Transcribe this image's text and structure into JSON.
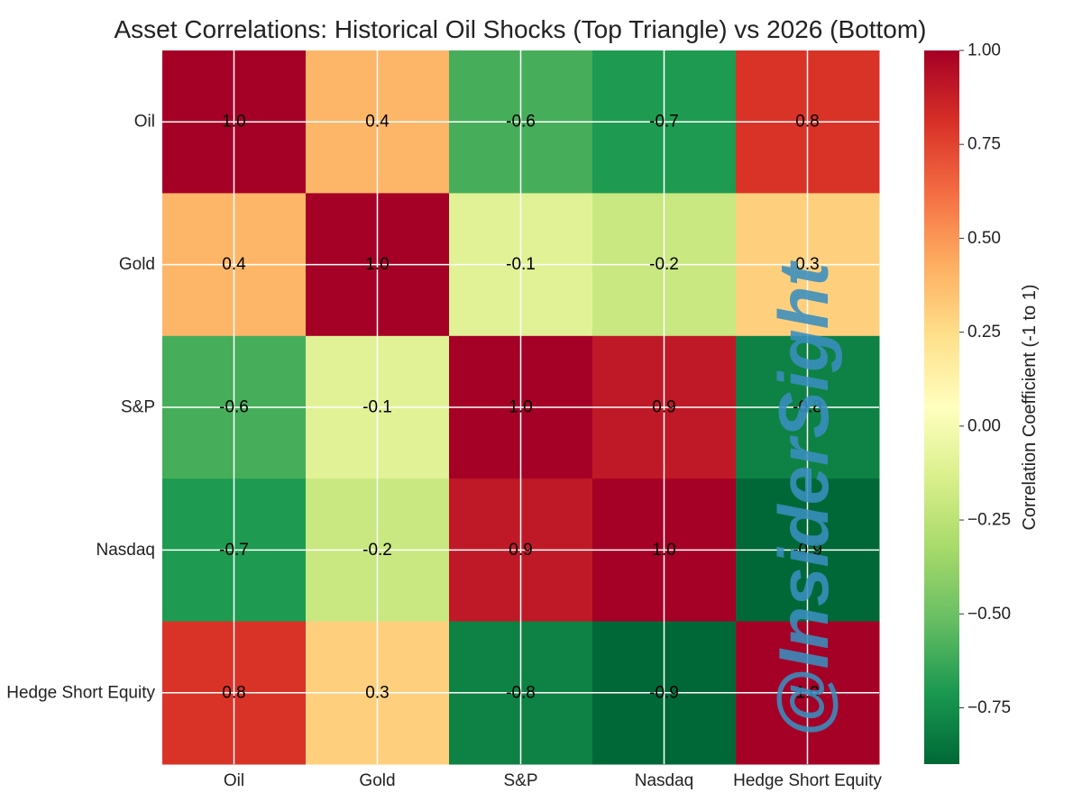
{
  "chart_data": {
    "type": "heatmap",
    "title": "Asset Correlations: Historical Oil Shocks (Top Triangle) vs 2026 (Bottom)",
    "x_categories": [
      "Oil",
      "Gold",
      "S&P",
      "Nasdaq",
      "Hedge Short Equity"
    ],
    "y_categories": [
      "Oil",
      "Gold",
      "S&P",
      "Nasdaq",
      "Hedge Short Equity"
    ],
    "matrix": [
      [
        1.0,
        0.4,
        -0.6,
        -0.7,
        0.8
      ],
      [
        0.4,
        1.0,
        -0.1,
        -0.2,
        0.3
      ],
      [
        -0.6,
        -0.1,
        1.0,
        0.9,
        -0.8
      ],
      [
        -0.7,
        -0.2,
        0.9,
        1.0,
        -0.9
      ],
      [
        0.8,
        0.3,
        -0.8,
        -0.9,
        1.0
      ]
    ],
    "value_labels": [
      [
        "1.0",
        "0.4",
        "-0.6",
        "-0.7",
        "0.8"
      ],
      [
        "0.4",
        "1.0",
        "-0.1",
        "-0.2",
        "0.3"
      ],
      [
        "-0.6",
        "-0.1",
        "1.0",
        "0.9",
        "-0.8"
      ],
      [
        "-0.7",
        "-0.2",
        "0.9",
        "1.0",
        "-0.9"
      ],
      [
        "0.8",
        "0.3",
        "-0.8",
        "-0.9",
        "1.0"
      ]
    ],
    "colormap": "RdYlGn_r",
    "vmin": -0.9,
    "vmax": 1.0,
    "grid": true,
    "colorbar": {
      "label": "Correlation Coefficient (-1 to 1)",
      "ticks": [
        1.0,
        0.75,
        0.5,
        0.25,
        0.0,
        -0.25,
        -0.5,
        -0.75
      ],
      "tick_labels": [
        "1.00",
        "0.75",
        "0.50",
        "0.25",
        "0.00",
        "−0.25",
        "−0.50",
        "−0.75"
      ]
    }
  },
  "watermark": "@InsiderSight",
  "colors": {
    "watermark": "#3a8fbf",
    "gridline": "#ffffff"
  }
}
